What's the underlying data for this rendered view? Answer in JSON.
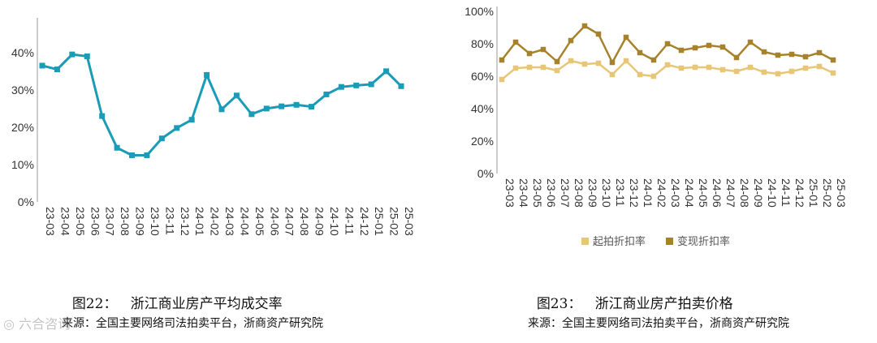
{
  "chart_data": [
    {
      "type": "line",
      "title": "浙江商业房产平均成交率",
      "caption_label": "图22：",
      "x": [
        "23-03",
        "23-04",
        "23-05",
        "23-06",
        "23-07",
        "23-08",
        "23-09",
        "23-10",
        "23-11",
        "23-12",
        "24-01",
        "24-02",
        "24-03",
        "24-04",
        "24-05",
        "24-06",
        "24-07",
        "24-08",
        "24-09",
        "24-10",
        "24-11",
        "24-12",
        "25-01",
        "25-02",
        "25-03"
      ],
      "series": [
        {
          "values": [
            36.5,
            35.5,
            39.5,
            39,
            23,
            14.5,
            12.5,
            12.5,
            17,
            19.8,
            22,
            34,
            24.8,
            28.5,
            23.5,
            25,
            25.6,
            26,
            25.5,
            28.8,
            30.8,
            31.2,
            31.5,
            35,
            31
          ]
        }
      ],
      "yticks": [
        "0%",
        "10%",
        "20%",
        "30%",
        "40%"
      ],
      "ylim": [
        0,
        48
      ],
      "grid": false,
      "colors": {
        "line": "#1a9bb6"
      }
    },
    {
      "type": "line",
      "title": "浙江商业房产拍卖价格",
      "caption_label": "图23：",
      "x": [
        "23-03",
        "23-04",
        "23-05",
        "23-06",
        "23-07",
        "23-08",
        "23-09",
        "23-10",
        "23-11",
        "23-12",
        "24-01",
        "24-02",
        "24-03",
        "24-04",
        "24-05",
        "24-06",
        "24-07",
        "24-08",
        "24-09",
        "24-10",
        "24-11",
        "24-12",
        "25-01",
        "25-02",
        "25-03"
      ],
      "series": [
        {
          "name": "起拍折扣率",
          "values": [
            58,
            65,
            65.5,
            65.5,
            63.5,
            69.5,
            67.5,
            68,
            61,
            69.5,
            61,
            60,
            67,
            65,
            65.5,
            65.5,
            64,
            63,
            65.5,
            62.5,
            61.5,
            63,
            65,
            66,
            62
          ]
        },
        {
          "name": "变现折扣率",
          "values": [
            70,
            81,
            74,
            76.5,
            69,
            82,
            91,
            86,
            68.5,
            84,
            74.5,
            70,
            80,
            76,
            77.5,
            79,
            78,
            71.5,
            81,
            75,
            73,
            73.5,
            72,
            74.5,
            70
          ]
        }
      ],
      "yticks": [
        "0%",
        "20%",
        "40%",
        "60%",
        "80%",
        "100%"
      ],
      "ylim": [
        0,
        100
      ],
      "grid": false,
      "legend": "bottom",
      "colors": {
        "series0": "#e8c677",
        "series1": "#a7822c"
      }
    }
  ],
  "captions": {
    "left": {
      "label": "图22：",
      "title": "浙江商业房产平均成交率"
    },
    "right": {
      "label": "图23：",
      "title": "浙江商业房产拍卖价格"
    }
  },
  "sources": {
    "left": "来源：全国主要网络司法拍卖平台，浙商资产研究院",
    "right": "来源：全国主要网络司法拍卖平台，浙商资产研究院"
  },
  "watermark": "六合咨询"
}
